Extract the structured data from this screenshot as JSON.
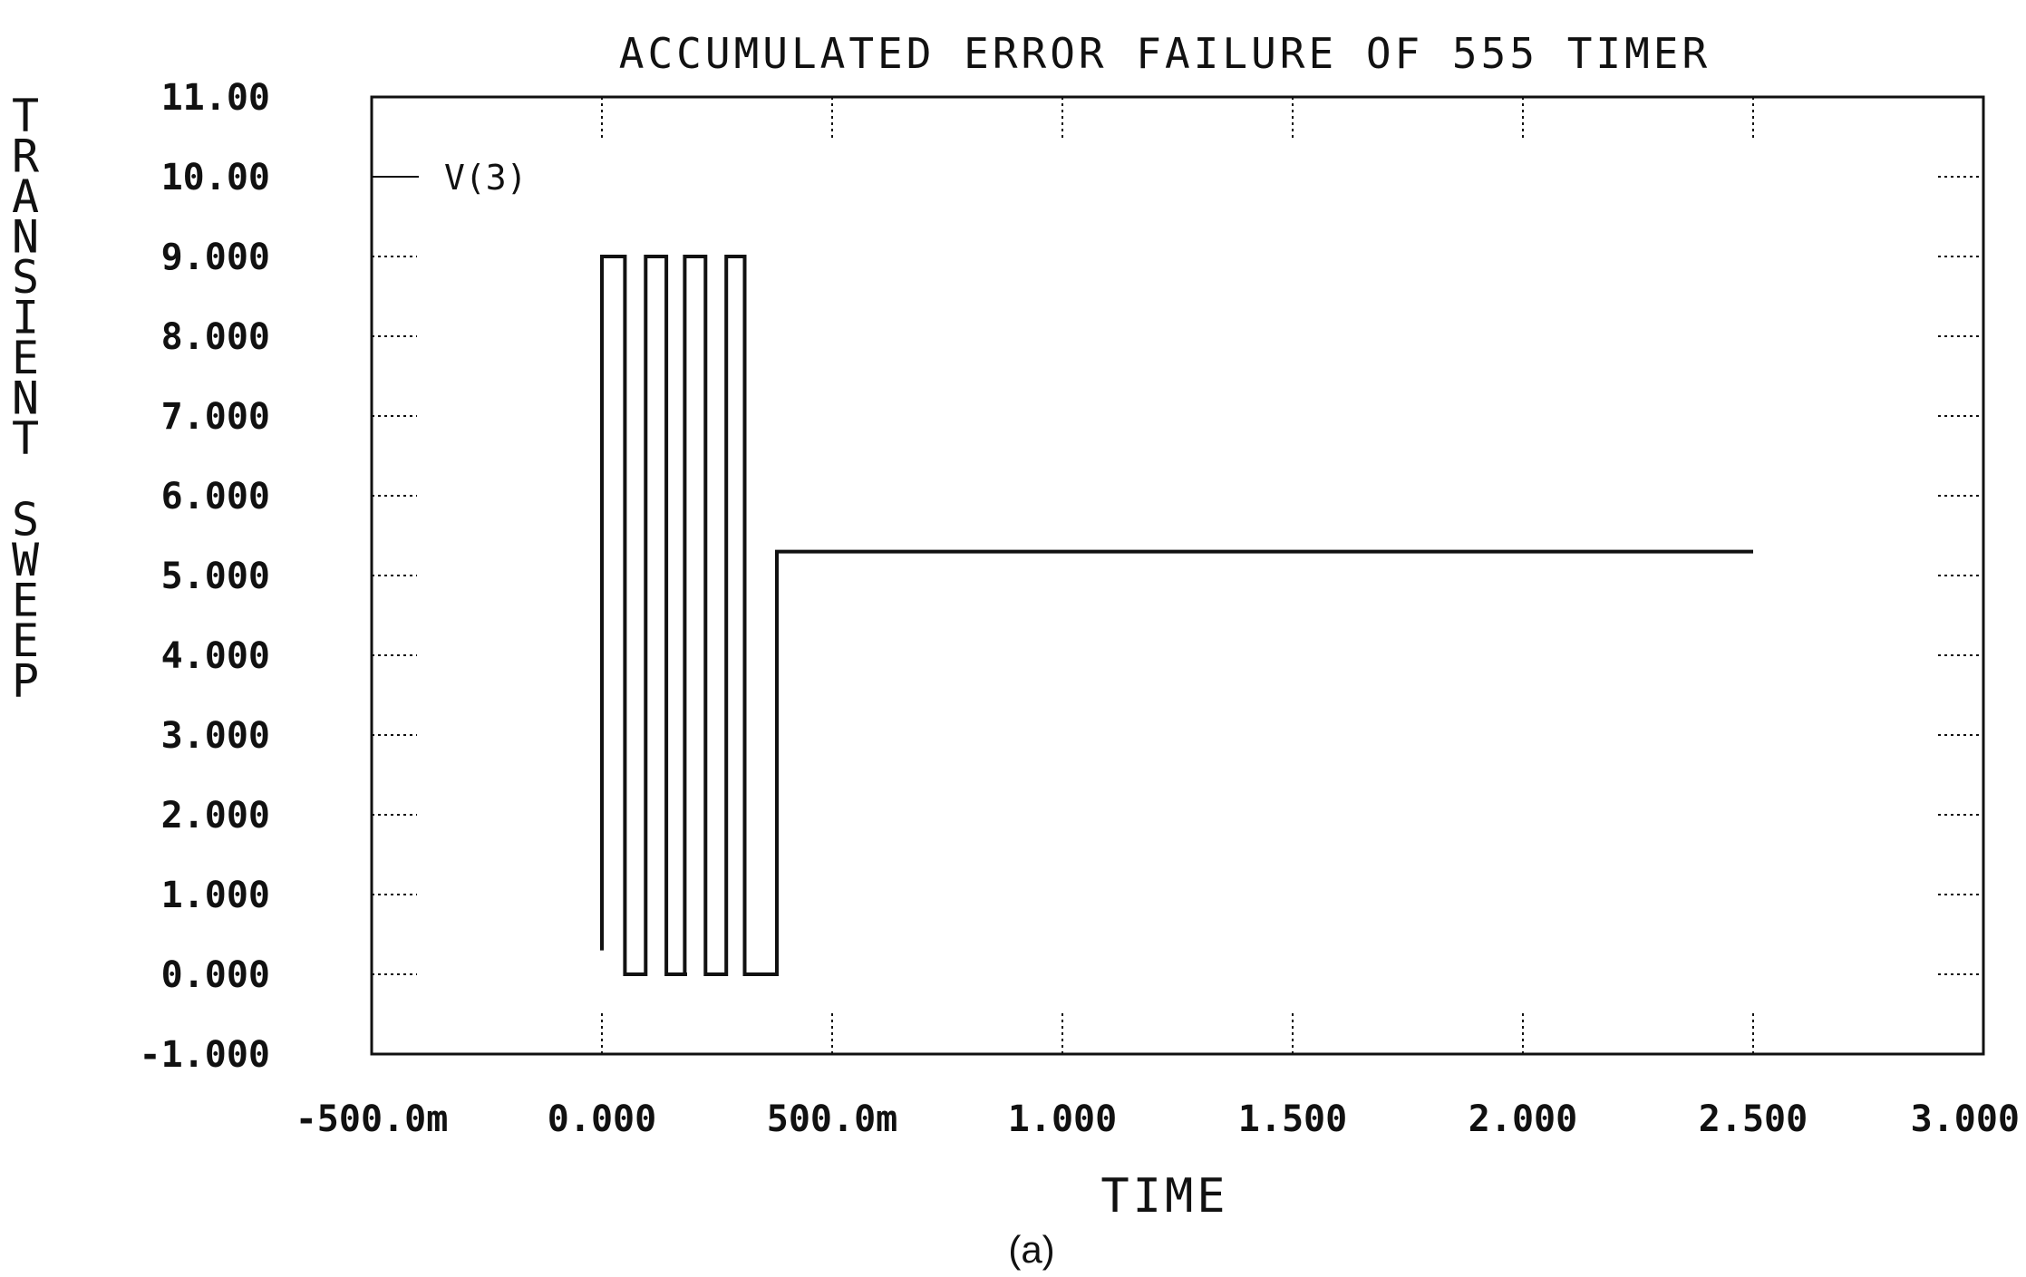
{
  "chart_data": {
    "type": "line",
    "title": "ACCUMULATED ERROR FAILURE OF 555 TIMER",
    "xlabel": "TIME",
    "ylabel": "TRANSIENT SWEEP",
    "caption": "(a)",
    "xlim": [
      -0.5,
      3.0
    ],
    "ylim": [
      -1.0,
      11.0
    ],
    "x_ticks": [
      -0.5,
      0.0,
      0.5,
      1.0,
      1.5,
      2.0,
      2.5,
      3.0
    ],
    "x_tick_labels": [
      "-500.0m",
      "0.000",
      "500.0m",
      "1.000",
      "1.500",
      "2.000",
      "2.500",
      "3.000"
    ],
    "y_ticks": [
      11,
      10,
      9,
      8,
      7,
      6,
      5,
      4,
      3,
      2,
      1,
      0,
      -1
    ],
    "y_tick_labels": [
      "11.00",
      "10.00",
      "9.000",
      "8.000",
      "7.000",
      "6.000",
      "5.000",
      "4.000",
      "3.000",
      "2.000",
      "1.000",
      "0.000",
      "-1.000"
    ],
    "grid": "dotted tick marks",
    "legend": {
      "placement": "top-left"
    },
    "line_color": "#111111",
    "series": [
      {
        "name": "V(3)",
        "x": [
          0.0,
          0.0,
          0.05,
          0.05,
          0.055,
          0.055,
          0.095,
          0.095,
          0.14,
          0.14,
          0.185,
          0.185,
          0.18,
          0.18,
          0.225,
          0.225,
          0.27,
          0.27,
          0.31,
          0.31,
          0.355,
          0.355,
          0.38,
          0.38,
          2.5
        ],
        "y": [
          0.3,
          9.0,
          9.0,
          0.0,
          0.0,
          0.0,
          0.0,
          9.0,
          9.0,
          0.0,
          0.0,
          0.0,
          0.0,
          9.0,
          9.0,
          0.0,
          0.0,
          9.0,
          9.0,
          0.0,
          0.0,
          0.0,
          0.0,
          5.3,
          5.3
        ]
      }
    ]
  }
}
